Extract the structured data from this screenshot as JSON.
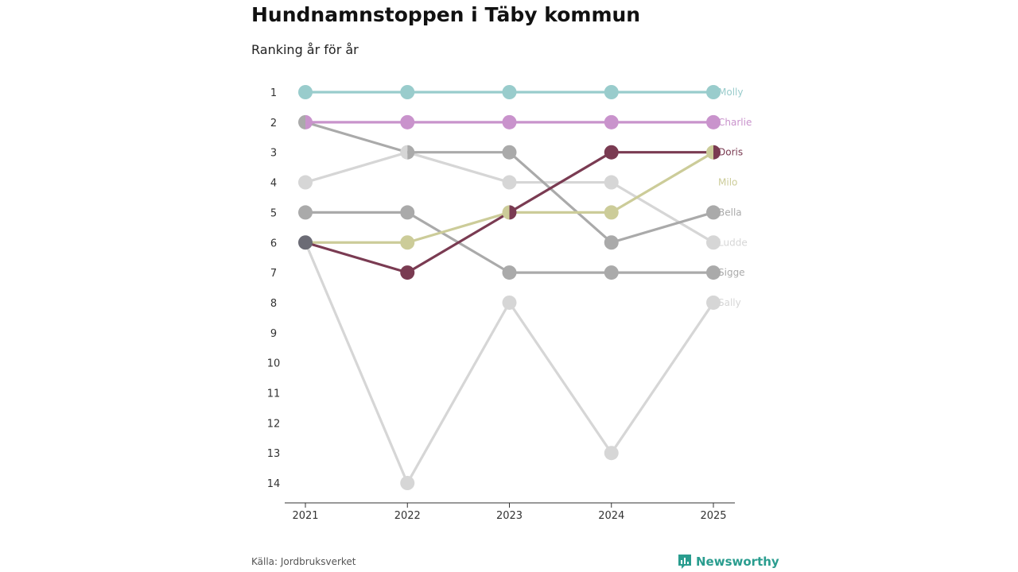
{
  "header": {
    "title": "Hundnamnstoppen i Täby kommun",
    "subtitle": "Ranking år för år"
  },
  "footer": {
    "source": "Källa: Jordbruksverket",
    "brand": "Newsworthy",
    "brand_icon": "bar-chart-icon"
  },
  "chart_data": {
    "type": "line",
    "title": "Hundnamnstoppen i Täby kommun",
    "subtitle": "Ranking år för år",
    "xlabel": "",
    "ylabel": "",
    "x": [
      "2021",
      "2022",
      "2023",
      "2024",
      "2025"
    ],
    "y_ticks": [
      "1",
      "2",
      "3",
      "4",
      "5",
      "6",
      "7",
      "8",
      "9",
      "10",
      "11",
      "12",
      "13",
      "14"
    ],
    "ylim": [
      1,
      14
    ],
    "y_inverted": true,
    "series": [
      {
        "name": "Sally",
        "color": "#d6d6d6",
        "values": [
          6,
          14,
          8,
          13,
          8
        ]
      },
      {
        "name": "Ludde",
        "color": "#d6d6d6",
        "values": [
          4,
          3,
          4,
          4,
          6
        ]
      },
      {
        "name": "Sigge",
        "color": "#aaaaaa",
        "values": [
          5,
          5,
          7,
          7,
          7
        ]
      },
      {
        "name": "Bella",
        "color": "#aaaaaa",
        "values": [
          2,
          3,
          3,
          6,
          5
        ]
      },
      {
        "name": "Milo",
        "color": "#cccc99",
        "values": [
          6,
          6,
          5,
          5,
          3
        ]
      },
      {
        "name": "Doris",
        "color": "#7a3b52",
        "values": [
          6,
          7,
          5,
          3,
          3
        ]
      },
      {
        "name": "Charlie",
        "color": "#c993cc",
        "values": [
          2,
          2,
          2,
          2,
          2
        ]
      },
      {
        "name": "Molly",
        "color": "#99cccc",
        "values": [
          1,
          1,
          1,
          1,
          1
        ]
      }
    ]
  }
}
